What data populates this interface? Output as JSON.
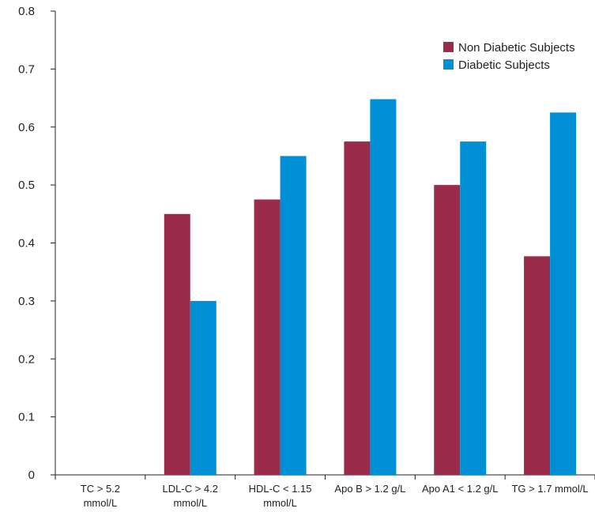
{
  "chart_data": {
    "type": "bar",
    "categories": [
      [
        "TC > 5.2",
        "mmol/L"
      ],
      [
        "LDL-C > 4.2",
        "mmol/L"
      ],
      [
        "HDL-C < 1.15",
        "mmol/L"
      ],
      [
        "Apo B > 1.2 g/L"
      ],
      [
        "Apo A1 < 1.2 g/L"
      ],
      [
        "TG > 1.7 mmol/L"
      ]
    ],
    "series": [
      {
        "name": "Non Diabetic Subjects",
        "color": "#9b2b4b",
        "values": [
          0,
          0.45,
          0.475,
          0.575,
          0.5,
          0.377
        ]
      },
      {
        "name": "Diabetic Subjects",
        "color": "#008fd5",
        "values": [
          0,
          0.3,
          0.55,
          0.648,
          0.575,
          0.625
        ]
      }
    ],
    "y_ticks": [
      "0",
      "0.1",
      "0.2",
      "0.3",
      "0.4",
      "0.5",
      "0.6",
      "0.7",
      "0.8"
    ],
    "ylim": [
      0,
      0.8
    ],
    "grid": false,
    "legend_position": "top-right"
  }
}
